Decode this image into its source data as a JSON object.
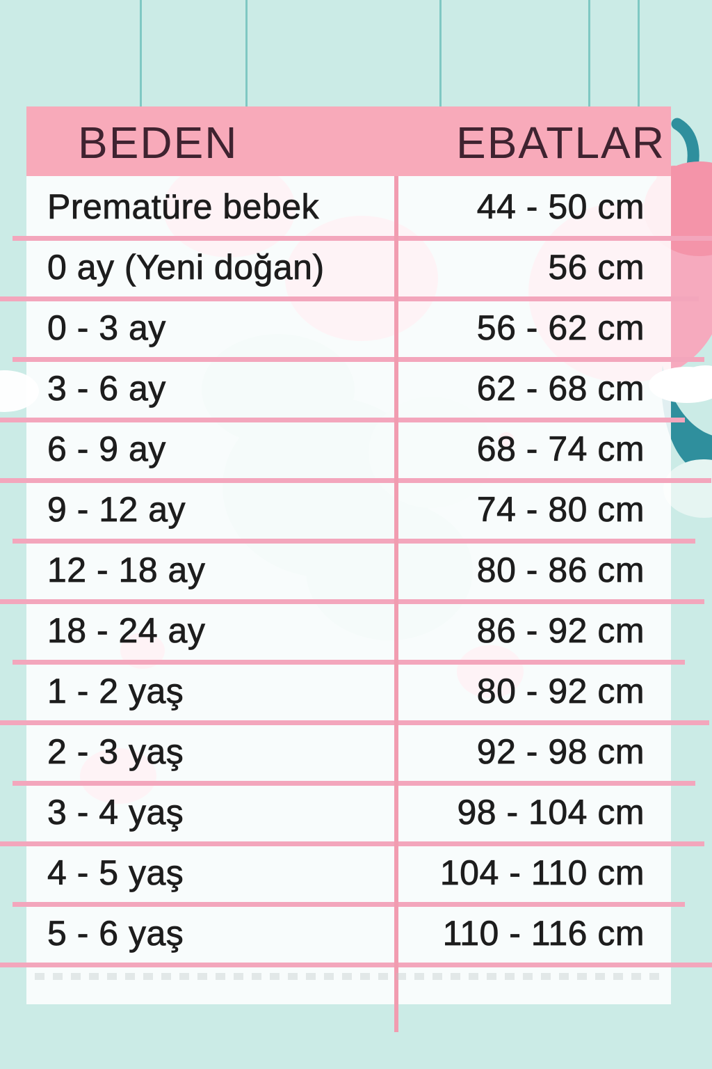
{
  "chart_data": {
    "type": "table",
    "title": "Baby clothing size chart (Turkish)",
    "columns": [
      "BEDEN",
      "EBATLAR"
    ],
    "rows": [
      [
        "Prematüre bebek",
        "44 - 50 cm"
      ],
      [
        "0 ay (Yeni doğan)",
        "56 cm"
      ],
      [
        "0 - 3 ay",
        "56 - 62 cm"
      ],
      [
        "3 - 6 ay",
        "62 - 68 cm"
      ],
      [
        "6 - 9 ay",
        "68 - 74 cm"
      ],
      [
        "9 - 12 ay",
        "74 - 80 cm"
      ],
      [
        "12 - 18 ay",
        "80 - 86 cm"
      ],
      [
        "18 - 24 ay",
        "86 - 92 cm"
      ],
      [
        "1 - 2 yaş",
        "80 - 92 cm"
      ],
      [
        "2 - 3 yaş",
        "92 - 98 cm"
      ],
      [
        "3 - 4 yaş",
        "98 - 104 cm"
      ],
      [
        "4 - 5 yaş",
        "104 - 110 cm"
      ],
      [
        "5 - 6 yaş",
        "110 - 116 cm"
      ]
    ]
  },
  "table": {
    "header": {
      "col1": "BEDEN",
      "col2": "EBATLAR"
    },
    "rows": [
      {
        "size": "Prematüre bebek",
        "dimension": "44 - 50 cm"
      },
      {
        "size": "0 ay (Yeni doğan)",
        "dimension": "56 cm"
      },
      {
        "size": "0 - 3 ay",
        "dimension": "56 - 62 cm"
      },
      {
        "size": "3 - 6 ay",
        "dimension": "62 - 68 cm"
      },
      {
        "size": "6 - 9 ay",
        "dimension": "68 - 74 cm"
      },
      {
        "size": "9 - 12 ay",
        "dimension": "74 - 80 cm"
      },
      {
        "size": "12 - 18 ay",
        "dimension": "80 - 86 cm"
      },
      {
        "size": "18 - 24 ay",
        "dimension": "86 - 92 cm"
      },
      {
        "size": "1 - 2 yaş",
        "dimension": "80 - 92 cm"
      },
      {
        "size": "2 - 3 yaş",
        "dimension": "92 - 98 cm"
      },
      {
        "size": "3 - 4 yaş",
        "dimension": "98 - 104 cm"
      },
      {
        "size": "4 - 5 yaş",
        "dimension": "104 - 110 cm"
      },
      {
        "size": "5 - 6 yaş",
        "dimension": "110 - 116 cm"
      }
    ]
  },
  "colors": {
    "background_teal": "#cbebe6",
    "string_teal": "#7fc8c3",
    "header_pink": "#f8aaba",
    "separator_pink": "#f3a6bc",
    "divider_pink": "#f19cb0",
    "header_text": "#3f2330",
    "body_text": "#1d1d1d",
    "blob_pink": "#f494a9",
    "decoration_teal": "#2f8f9d",
    "cloud_white": "#ffffff"
  },
  "icons": [
    "hanging-string-icon",
    "pink-blob-icon",
    "teal-hook-icon",
    "teal-wave-icon",
    "cloud-icon"
  ]
}
